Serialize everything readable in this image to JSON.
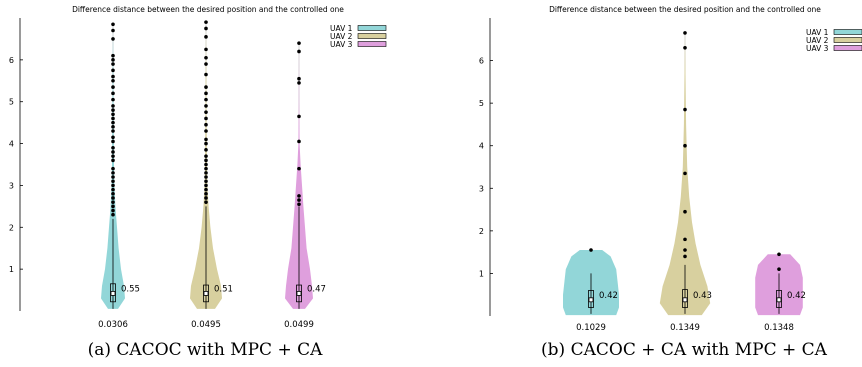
{
  "chart_data": [
    {
      "type": "violin",
      "panel": "(a)",
      "title": "Difference distance between the desired position and the controlled one",
      "caption": "(a) CACOC with MPC + CA",
      "ylim": [
        0,
        7
      ],
      "yticks": [
        1,
        2,
        3,
        4,
        5,
        6
      ],
      "legend_position": "top-right",
      "series": [
        {
          "name": "UAV 1",
          "color": "#92d6d8",
          "category": "0.0306",
          "mean_label": "0.55",
          "median": 0.42,
          "q1": 0.22,
          "q3": 0.65,
          "whisker_high": 2.2,
          "max": 6.85,
          "violin_widths": [
            [
              0.05,
              0.25
            ],
            [
              0.3,
              0.6
            ],
            [
              0.6,
              0.55
            ],
            [
              1.0,
              0.4
            ],
            [
              1.5,
              0.28
            ],
            [
              2.0,
              0.2
            ],
            [
              2.5,
              0.12
            ],
            [
              3.0,
              0.07
            ],
            [
              3.5,
              0.05
            ],
            [
              4.5,
              0.03
            ],
            [
              5.5,
              0.02
            ],
            [
              6.85,
              0.0
            ]
          ],
          "outliers": [
            2.3,
            2.4,
            2.5,
            2.6,
            2.7,
            2.8,
            2.9,
            3.0,
            3.1,
            3.2,
            3.3,
            3.4,
            3.6,
            3.7,
            3.8,
            3.9,
            4.05,
            4.15,
            4.3,
            4.4,
            4.5,
            4.6,
            4.7,
            4.8,
            4.9,
            5.05,
            5.2,
            5.35,
            5.5,
            5.6,
            5.75,
            5.9,
            6.0,
            6.1,
            6.5,
            6.7,
            6.85
          ]
        },
        {
          "name": "UAV 2",
          "color": "#d8d09f",
          "category": "0.0495",
          "mean_label": "0.51",
          "median": 0.42,
          "q1": 0.22,
          "q3": 0.62,
          "whisker_high": 2.5,
          "max": 6.9,
          "violin_widths": [
            [
              0.05,
              0.45
            ],
            [
              0.3,
              0.8
            ],
            [
              0.6,
              0.75
            ],
            [
              1.0,
              0.55
            ],
            [
              1.5,
              0.35
            ],
            [
              2.0,
              0.22
            ],
            [
              2.5,
              0.13
            ],
            [
              3.0,
              0.07
            ],
            [
              3.5,
              0.05
            ],
            [
              4.5,
              0.03
            ],
            [
              5.5,
              0.02
            ],
            [
              6.9,
              0.0
            ]
          ],
          "outliers": [
            2.6,
            2.7,
            2.8,
            2.9,
            3.0,
            3.1,
            3.2,
            3.3,
            3.4,
            3.5,
            3.6,
            3.7,
            3.85,
            4.0,
            4.1,
            4.3,
            4.45,
            4.6,
            4.75,
            4.9,
            5.05,
            5.2,
            5.35,
            5.65,
            5.9,
            6.05,
            6.25,
            6.55,
            6.75,
            6.9
          ]
        },
        {
          "name": "UAV 3",
          "color": "#df9fdd",
          "category": "0.0499",
          "mean_label": "0.47",
          "median": 0.42,
          "q1": 0.22,
          "q3": 0.62,
          "whisker_high": 2.5,
          "max": 6.4,
          "violin_widths": [
            [
              0.05,
              0.3
            ],
            [
              0.3,
              0.7
            ],
            [
              0.6,
              0.65
            ],
            [
              1.0,
              0.55
            ],
            [
              1.5,
              0.38
            ],
            [
              2.0,
              0.3
            ],
            [
              2.5,
              0.22
            ],
            [
              3.0,
              0.15
            ],
            [
              3.5,
              0.08
            ],
            [
              4.0,
              0.03
            ],
            [
              5.0,
              0.01
            ],
            [
              6.4,
              0.0
            ]
          ],
          "outliers": [
            2.55,
            2.65,
            2.75,
            3.4,
            4.05,
            4.65,
            5.45,
            5.55,
            6.2,
            6.4
          ]
        }
      ]
    },
    {
      "type": "violin",
      "panel": "(b)",
      "title": "Difference distance between the desired position and the controlled one",
      "caption": "(b) CACOC + CA with MPC + CA",
      "ylim": [
        0,
        7
      ],
      "yticks": [
        1,
        2,
        3,
        4,
        5,
        6
      ],
      "legend_position": "top-right",
      "series": [
        {
          "name": "UAV 1",
          "color": "#92d6d8",
          "category": "0.1029",
          "mean_label": "0.42",
          "median": 0.38,
          "q1": 0.2,
          "q3": 0.6,
          "whisker_high": 1.0,
          "max": 1.55,
          "violin_widths": [
            [
              0.02,
              0.9
            ],
            [
              0.2,
              1.0
            ],
            [
              0.5,
              1.0
            ],
            [
              0.8,
              0.95
            ],
            [
              1.1,
              0.9
            ],
            [
              1.4,
              0.7
            ],
            [
              1.55,
              0.4
            ]
          ],
          "outliers": [
            1.55
          ]
        },
        {
          "name": "UAV 2",
          "color": "#d8d09f",
          "category": "0.1349",
          "mean_label": "0.43",
          "median": 0.38,
          "q1": 0.2,
          "q3": 0.62,
          "whisker_high": 1.2,
          "max": 6.65,
          "violin_widths": [
            [
              0.02,
              0.6
            ],
            [
              0.3,
              0.9
            ],
            [
              0.7,
              0.8
            ],
            [
              1.2,
              0.55
            ],
            [
              1.7,
              0.38
            ],
            [
              2.2,
              0.25
            ],
            [
              2.8,
              0.15
            ],
            [
              3.5,
              0.08
            ],
            [
              4.5,
              0.04
            ],
            [
              5.5,
              0.02
            ],
            [
              6.65,
              0.0
            ]
          ],
          "outliers": [
            1.4,
            1.55,
            1.8,
            2.45,
            3.35,
            4.0,
            4.85,
            6.3,
            6.65
          ]
        },
        {
          "name": "UAV 3",
          "color": "#df9fdd",
          "category": "0.1348",
          "mean_label": "0.42",
          "median": 0.38,
          "q1": 0.2,
          "q3": 0.6,
          "whisker_high": 1.0,
          "max": 1.45,
          "violin_widths": [
            [
              0.02,
              0.75
            ],
            [
              0.2,
              0.85
            ],
            [
              0.5,
              0.85
            ],
            [
              0.9,
              0.85
            ],
            [
              1.2,
              0.75
            ],
            [
              1.45,
              0.4
            ]
          ],
          "outliers": [
            1.1,
            1.45
          ]
        }
      ]
    }
  ]
}
